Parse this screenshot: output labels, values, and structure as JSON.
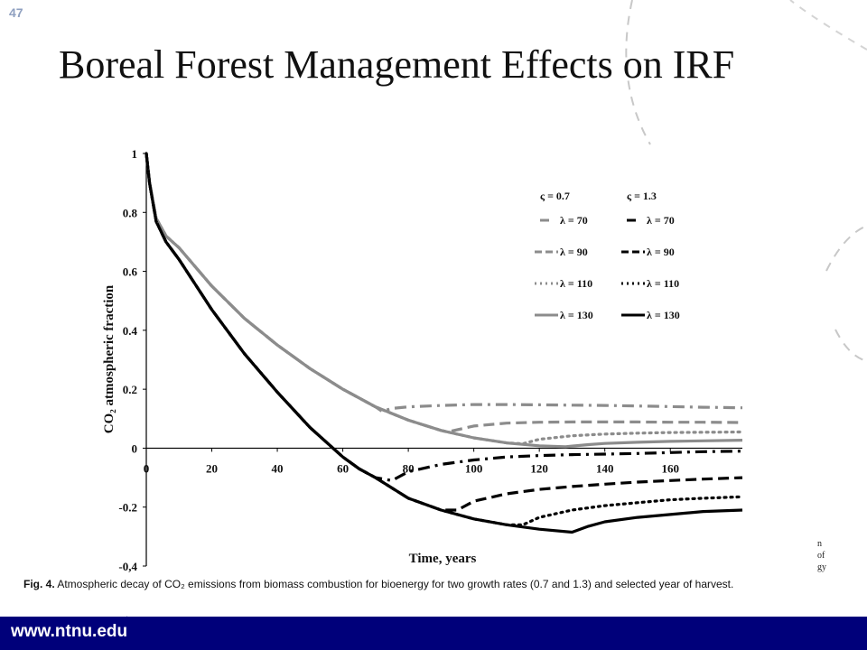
{
  "slide": {
    "number": "47",
    "title": "Boreal Forest Management Effects on IRF",
    "caption_label": "Fig. 4.",
    "caption_text": "Atmospheric decay of CO₂ emissions from biomass combustion for bioenergy for two growth rates (0.7 and 1.3) and selected year of harvest.",
    "cut_text": [
      "n",
      "of",
      "gy"
    ],
    "footer_url": "www.ntnu.edu",
    "accent_color": "#00007a"
  },
  "chart_data": {
    "type": "line",
    "xlabel": "Time, years",
    "ylabel": "CO₂ atmospheric fraction",
    "xlim": [
      0,
      182
    ],
    "ylim": [
      -0.4,
      1.0
    ],
    "x_ticks": [
      "0",
      "20",
      "40",
      "60",
      "80",
      "100",
      "120",
      "140",
      "160"
    ],
    "y_ticks": [
      "1",
      "0.8",
      "0.6",
      "0.4",
      "0.2",
      "0",
      "-0.2",
      "-0,4"
    ],
    "grid": false,
    "legend_position": "top-right",
    "legend_headers": [
      "ς = 0.7",
      "ς = 1.3"
    ],
    "colors": {
      "gray": "#8c8c8c",
      "black": "#000000"
    },
    "series": [
      {
        "name": "λ = 70",
        "group": "0.7",
        "color": "gray",
        "dash": "dashdot",
        "x": [
          0,
          1,
          3,
          6,
          10,
          20,
          30,
          40,
          50,
          60,
          70,
          72,
          75,
          80,
          90,
          100,
          110,
          120,
          130,
          140,
          150,
          160,
          170,
          182
        ],
        "y": [
          1.0,
          0.9,
          0.78,
          0.72,
          0.68,
          0.55,
          0.44,
          0.35,
          0.27,
          0.2,
          0.14,
          0.125,
          0.135,
          0.14,
          0.145,
          0.148,
          0.148,
          0.147,
          0.146,
          0.145,
          0.143,
          0.141,
          0.139,
          0.137
        ]
      },
      {
        "name": "λ = 90",
        "group": "0.7",
        "color": "gray",
        "dash": "dashed",
        "x": [
          0,
          1,
          3,
          6,
          10,
          20,
          30,
          40,
          50,
          60,
          70,
          80,
          90,
          92,
          100,
          110,
          120,
          130,
          140,
          150,
          160,
          170,
          182
        ],
        "y": [
          1.0,
          0.9,
          0.78,
          0.72,
          0.68,
          0.55,
          0.44,
          0.35,
          0.27,
          0.2,
          0.14,
          0.095,
          0.06,
          0.055,
          0.075,
          0.085,
          0.088,
          0.089,
          0.089,
          0.089,
          0.088,
          0.088,
          0.087
        ]
      },
      {
        "name": "λ = 110",
        "group": "0.7",
        "color": "gray",
        "dash": "dotted",
        "x": [
          0,
          1,
          3,
          6,
          10,
          20,
          30,
          40,
          50,
          60,
          70,
          80,
          90,
          100,
          110,
          115,
          120,
          130,
          140,
          150,
          160,
          170,
          182
        ],
        "y": [
          1.0,
          0.9,
          0.78,
          0.72,
          0.68,
          0.55,
          0.44,
          0.35,
          0.27,
          0.2,
          0.14,
          0.095,
          0.06,
          0.035,
          0.018,
          0.015,
          0.03,
          0.042,
          0.048,
          0.051,
          0.053,
          0.054,
          0.055
        ]
      },
      {
        "name": "λ = 130",
        "group": "0.7",
        "color": "gray",
        "dash": "solid",
        "x": [
          0,
          1,
          3,
          6,
          10,
          20,
          30,
          40,
          50,
          60,
          70,
          80,
          90,
          100,
          110,
          120,
          128,
          135,
          140,
          150,
          160,
          170,
          182
        ],
        "y": [
          1.0,
          0.9,
          0.78,
          0.72,
          0.68,
          0.55,
          0.44,
          0.35,
          0.27,
          0.2,
          0.14,
          0.095,
          0.06,
          0.035,
          0.018,
          0.008,
          0.005,
          0.012,
          0.016,
          0.02,
          0.023,
          0.025,
          0.027
        ]
      },
      {
        "name": "λ = 70",
        "group": "1.3",
        "color": "black",
        "dash": "dashdot",
        "x": [
          0,
          1,
          3,
          6,
          10,
          20,
          30,
          40,
          50,
          55,
          60,
          65,
          70,
          75,
          80,
          90,
          100,
          110,
          120,
          130,
          140,
          150,
          160,
          170,
          182
        ],
        "y": [
          1.0,
          0.9,
          0.77,
          0.7,
          0.64,
          0.47,
          0.32,
          0.19,
          0.07,
          0.02,
          -0.03,
          -0.07,
          -0.1,
          -0.11,
          -0.08,
          -0.055,
          -0.04,
          -0.03,
          -0.025,
          -0.022,
          -0.02,
          -0.018,
          -0.015,
          -0.012,
          -0.01
        ]
      },
      {
        "name": "λ = 90",
        "group": "1.3",
        "color": "black",
        "dash": "dashed",
        "x": [
          0,
          1,
          3,
          6,
          10,
          20,
          30,
          40,
          50,
          55,
          60,
          65,
          70,
          80,
          90,
          95,
          100,
          110,
          120,
          130,
          140,
          150,
          160,
          170,
          182
        ],
        "y": [
          1.0,
          0.9,
          0.77,
          0.7,
          0.64,
          0.47,
          0.32,
          0.19,
          0.07,
          0.02,
          -0.03,
          -0.07,
          -0.1,
          -0.17,
          -0.21,
          -0.21,
          -0.18,
          -0.155,
          -0.14,
          -0.13,
          -0.122,
          -0.115,
          -0.11,
          -0.105,
          -0.1
        ]
      },
      {
        "name": "λ = 110",
        "group": "1.3",
        "color": "black",
        "dash": "dotted",
        "x": [
          0,
          1,
          3,
          6,
          10,
          20,
          30,
          40,
          50,
          55,
          60,
          65,
          70,
          80,
          90,
          100,
          110,
          115,
          120,
          130,
          140,
          150,
          160,
          170,
          182
        ],
        "y": [
          1.0,
          0.9,
          0.77,
          0.7,
          0.64,
          0.47,
          0.32,
          0.19,
          0.07,
          0.02,
          -0.03,
          -0.07,
          -0.1,
          -0.17,
          -0.21,
          -0.24,
          -0.26,
          -0.26,
          -0.235,
          -0.21,
          -0.195,
          -0.185,
          -0.175,
          -0.17,
          -0.165
        ]
      },
      {
        "name": "λ = 130",
        "group": "1.3",
        "color": "black",
        "dash": "solid",
        "x": [
          0,
          1,
          3,
          6,
          10,
          20,
          30,
          40,
          50,
          55,
          60,
          65,
          70,
          80,
          90,
          100,
          110,
          120,
          130,
          135,
          140,
          150,
          160,
          170,
          182
        ],
        "y": [
          1.0,
          0.9,
          0.77,
          0.7,
          0.64,
          0.47,
          0.32,
          0.19,
          0.07,
          0.02,
          -0.03,
          -0.07,
          -0.1,
          -0.17,
          -0.21,
          -0.24,
          -0.26,
          -0.275,
          -0.285,
          -0.265,
          -0.25,
          -0.235,
          -0.225,
          -0.215,
          -0.21
        ]
      }
    ]
  }
}
